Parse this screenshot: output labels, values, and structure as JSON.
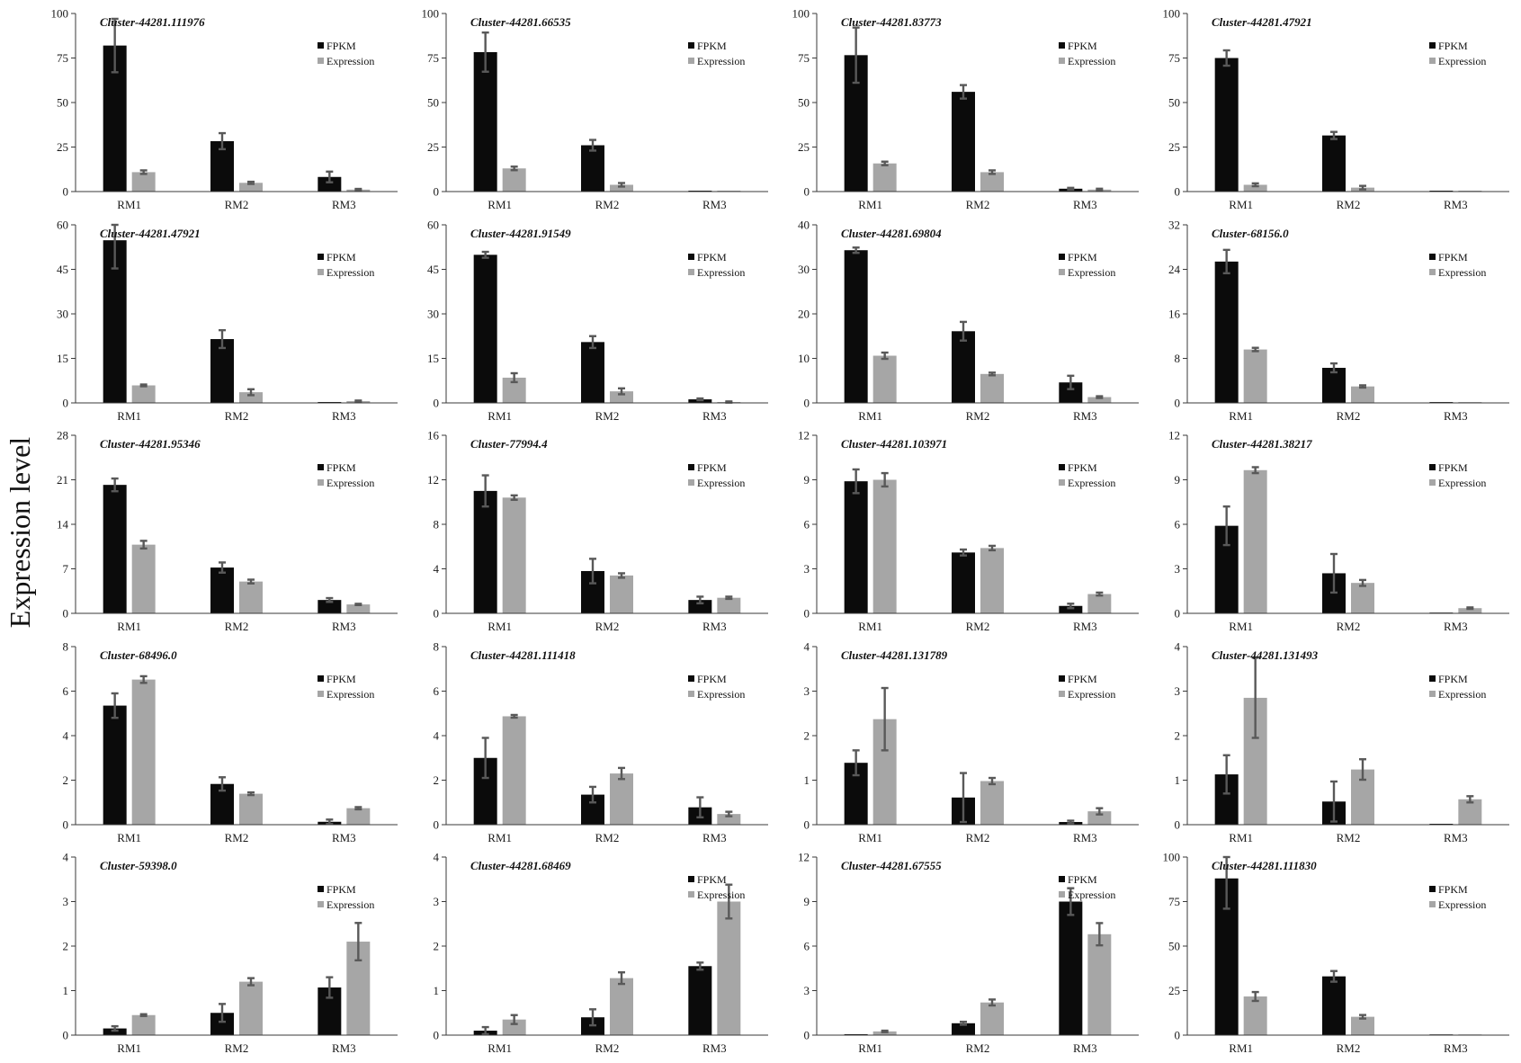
{
  "y_axis_label": "Expression level",
  "series_colors": [
    "#0b0b0b",
    "#a6a6a6"
  ],
  "error_bar_color": "#595959",
  "chart_data": [
    {
      "type": "bar",
      "title": "Cluster-44281.111976",
      "categories": [
        "RM1",
        "RM2",
        "RM3"
      ],
      "ylim": [
        0,
        100
      ],
      "yticks": [
        0,
        25,
        50,
        75,
        100
      ],
      "legend": "top-right",
      "series": [
        {
          "name": "FPKM",
          "values": [
            82,
            28.3,
            8.2
          ],
          "errors": [
            15,
            4.5,
            3
          ]
        },
        {
          "name": "Expression",
          "values": [
            10.9,
            4.9,
            1.1
          ],
          "errors": [
            1,
            0.6,
            0.4
          ]
        }
      ]
    },
    {
      "type": "bar",
      "title": "Cluster-44281.66535",
      "categories": [
        "RM1",
        "RM2",
        "RM3"
      ],
      "ylim": [
        0,
        100
      ],
      "yticks": [
        0,
        25,
        50,
        75,
        100
      ],
      "legend": "top-right",
      "series": [
        {
          "name": "FPKM",
          "values": [
            78.3,
            26,
            0.5
          ],
          "errors": [
            11,
            3,
            0
          ]
        },
        {
          "name": "Expression",
          "values": [
            13,
            3.8,
            0.5
          ],
          "errors": [
            1,
            1,
            0
          ]
        }
      ]
    },
    {
      "type": "bar",
      "title": "Cluster-44281.83773",
      "categories": [
        "RM1",
        "RM2",
        "RM3"
      ],
      "ylim": [
        0,
        100
      ],
      "yticks": [
        0,
        25,
        50,
        75,
        100
      ],
      "legend": "top-right",
      "series": [
        {
          "name": "FPKM",
          "values": [
            76.6,
            56,
            1.6
          ],
          "errors": [
            15.5,
            3.8,
            0.5
          ]
        },
        {
          "name": "Expression",
          "values": [
            15.8,
            10.9,
            1.1
          ],
          "errors": [
            1,
            1,
            0.5
          ]
        }
      ]
    },
    {
      "type": "bar",
      "title": "Cluster-44281.47921",
      "categories": [
        "RM1",
        "RM2",
        "RM3"
      ],
      "ylim": [
        0,
        100
      ],
      "yticks": [
        0,
        25,
        50,
        75,
        100
      ],
      "legend": "top-right",
      "series": [
        {
          "name": "FPKM",
          "values": [
            75,
            31.5,
            0.5
          ],
          "errors": [
            4.3,
            2,
            0
          ]
        },
        {
          "name": "Expression",
          "values": [
            3.8,
            2.2,
            0.5
          ],
          "errors": [
            0.8,
            1,
            0
          ]
        }
      ]
    },
    {
      "type": "bar",
      "title": "Cluster-44281.47921",
      "categories": [
        "RM1",
        "RM2",
        "RM3"
      ],
      "ylim": [
        0,
        60
      ],
      "yticks": [
        0,
        15,
        30,
        45,
        60
      ],
      "legend": "top-right",
      "series": [
        {
          "name": "FPKM",
          "values": [
            54.8,
            21.5,
            0.3
          ],
          "errors": [
            9.5,
            3,
            0
          ]
        },
        {
          "name": "Expression",
          "values": [
            5.9,
            3.6,
            0.6
          ],
          "errors": [
            0.3,
            1,
            0.2
          ]
        }
      ]
    },
    {
      "type": "bar",
      "title": "Cluster-44281.91549",
      "categories": [
        "RM1",
        "RM2",
        "RM3"
      ],
      "ylim": [
        0,
        60
      ],
      "yticks": [
        0,
        15,
        30,
        45,
        60
      ],
      "legend": "top-right",
      "series": [
        {
          "name": "FPKM",
          "values": [
            49.9,
            20.5,
            1.2
          ],
          "errors": [
            1,
            2,
            0.3
          ]
        },
        {
          "name": "Expression",
          "values": [
            8.5,
            3.9,
            0.3
          ],
          "errors": [
            1.5,
            1,
            0.2
          ]
        }
      ]
    },
    {
      "type": "bar",
      "title": "Cluster-44281.69804",
      "categories": [
        "RM1",
        "RM2",
        "RM3"
      ],
      "ylim": [
        0,
        40
      ],
      "yticks": [
        0,
        10,
        20,
        30,
        40
      ],
      "legend": "top-right",
      "series": [
        {
          "name": "FPKM",
          "values": [
            34.3,
            16.1,
            4.6
          ],
          "errors": [
            0.6,
            2.1,
            1.5
          ]
        },
        {
          "name": "Expression",
          "values": [
            10.6,
            6.5,
            1.3
          ],
          "errors": [
            0.7,
            0.3,
            0.2
          ]
        }
      ]
    },
    {
      "type": "bar",
      "title": "Cluster-68156.0",
      "categories": [
        "RM1",
        "RM2",
        "RM3"
      ],
      "ylim": [
        0,
        32
      ],
      "yticks": [
        0,
        8,
        16,
        24,
        32
      ],
      "legend": "top-right",
      "series": [
        {
          "name": "FPKM",
          "values": [
            25.4,
            6.3,
            0.15
          ],
          "errors": [
            2.1,
            0.8,
            0
          ]
        },
        {
          "name": "Expression",
          "values": [
            9.6,
            2.96,
            0.15
          ],
          "errors": [
            0.3,
            0.2,
            0
          ]
        }
      ]
    },
    {
      "type": "bar",
      "title": "Cluster-44281.95346",
      "categories": [
        "RM1",
        "RM2",
        "RM3"
      ],
      "ylim": [
        0,
        28
      ],
      "yticks": [
        0,
        7,
        14,
        21,
        28
      ],
      "legend": "top-right",
      "series": [
        {
          "name": "FPKM",
          "values": [
            20.2,
            7.2,
            2.1
          ],
          "errors": [
            1,
            0.8,
            0.3
          ]
        },
        {
          "name": "Expression",
          "values": [
            10.8,
            5,
            1.4
          ],
          "errors": [
            0.6,
            0.3,
            0.1
          ]
        }
      ]
    },
    {
      "type": "bar",
      "title": "Cluster-77994.4",
      "categories": [
        "RM1",
        "RM2",
        "RM3"
      ],
      "ylim": [
        0,
        16
      ],
      "yticks": [
        0,
        4,
        8,
        12,
        16
      ],
      "legend": "top-right",
      "series": [
        {
          "name": "FPKM",
          "values": [
            11,
            3.8,
            1.2
          ],
          "errors": [
            1.4,
            1.1,
            0.3
          ]
        },
        {
          "name": "Expression",
          "values": [
            10.4,
            3.4,
            1.4
          ],
          "errors": [
            0.2,
            0.2,
            0.1
          ]
        }
      ]
    },
    {
      "type": "bar",
      "title": "Cluster-44281.103971",
      "categories": [
        "RM1",
        "RM2",
        "RM3"
      ],
      "ylim": [
        0,
        12
      ],
      "yticks": [
        0,
        3,
        6,
        9,
        12
      ],
      "legend": "top-right",
      "series": [
        {
          "name": "FPKM",
          "values": [
            8.9,
            4.1,
            0.5
          ],
          "errors": [
            0.8,
            0.2,
            0.15
          ]
        },
        {
          "name": "Expression",
          "values": [
            9,
            4.4,
            1.3
          ],
          "errors": [
            0.45,
            0.15,
            0.1
          ]
        }
      ]
    },
    {
      "type": "bar",
      "title": "Cluster-44281.38217",
      "categories": [
        "RM1",
        "RM2",
        "RM3"
      ],
      "ylim": [
        0,
        12
      ],
      "yticks": [
        0,
        3,
        6,
        9,
        12
      ],
      "legend": "top-right",
      "series": [
        {
          "name": "FPKM",
          "values": [
            5.9,
            2.7,
            0.05
          ],
          "errors": [
            1.3,
            1.3,
            0
          ]
        },
        {
          "name": "Expression",
          "values": [
            9.65,
            2.05,
            0.35
          ],
          "errors": [
            0.2,
            0.2,
            0.05
          ]
        }
      ]
    },
    {
      "type": "bar",
      "title": "Cluster-68496.0",
      "categories": [
        "RM1",
        "RM2",
        "RM3"
      ],
      "ylim": [
        0,
        8
      ],
      "yticks": [
        0,
        2,
        4,
        6,
        8
      ],
      "legend": "top-right",
      "series": [
        {
          "name": "FPKM",
          "values": [
            5.35,
            1.83,
            0.13
          ],
          "errors": [
            0.55,
            0.3,
            0.1
          ]
        },
        {
          "name": "Expression",
          "values": [
            6.52,
            1.39,
            0.74
          ],
          "errors": [
            0.15,
            0.06,
            0.05
          ]
        }
      ]
    },
    {
      "type": "bar",
      "title": "Cluster-44281.111418",
      "categories": [
        "RM1",
        "RM2",
        "RM3"
      ],
      "ylim": [
        0,
        8
      ],
      "yticks": [
        0,
        2,
        4,
        6,
        8
      ],
      "legend": "top-right",
      "series": [
        {
          "name": "FPKM",
          "values": [
            3,
            1.35,
            0.78
          ],
          "errors": [
            0.9,
            0.35,
            0.45
          ]
        },
        {
          "name": "Expression",
          "values": [
            4.87,
            2.3,
            0.48
          ],
          "errors": [
            0.06,
            0.25,
            0.1
          ]
        }
      ]
    },
    {
      "type": "bar",
      "title": "Cluster-44281.131789",
      "categories": [
        "RM1",
        "RM2",
        "RM3"
      ],
      "ylim": [
        0,
        4
      ],
      "yticks": [
        0,
        1,
        2,
        3,
        4
      ],
      "legend": "top-right",
      "series": [
        {
          "name": "FPKM",
          "values": [
            1.39,
            0.61,
            0.06
          ],
          "errors": [
            0.28,
            0.55,
            0.03
          ]
        },
        {
          "name": "Expression",
          "values": [
            2.37,
            0.98,
            0.3
          ],
          "errors": [
            0.7,
            0.07,
            0.07
          ]
        }
      ]
    },
    {
      "type": "bar",
      "title": "Cluster-44281.131493",
      "categories": [
        "RM1",
        "RM2",
        "RM3"
      ],
      "ylim": [
        0,
        4
      ],
      "yticks": [
        0,
        1,
        2,
        3,
        4
      ],
      "legend": "top-right",
      "series": [
        {
          "name": "FPKM",
          "values": [
            1.13,
            0.52,
            0.02
          ],
          "errors": [
            0.43,
            0.45,
            0
          ]
        },
        {
          "name": "Expression",
          "values": [
            2.85,
            1.24,
            0.57
          ],
          "errors": [
            0.9,
            0.23,
            0.07
          ]
        }
      ]
    },
    {
      "type": "bar",
      "title": "Cluster-59398.0",
      "categories": [
        "RM1",
        "RM2",
        "RM3"
      ],
      "ylim": [
        0,
        4
      ],
      "yticks": [
        0,
        1,
        2,
        3,
        4
      ],
      "legend": "top-right",
      "series": [
        {
          "name": "FPKM",
          "values": [
            0.15,
            0.5,
            1.07
          ],
          "errors": [
            0.05,
            0.2,
            0.23
          ]
        },
        {
          "name": "Expression",
          "values": [
            0.45,
            1.2,
            2.1
          ],
          "errors": [
            0.02,
            0.08,
            0.42
          ]
        }
      ]
    },
    {
      "type": "bar",
      "title": "Cluster-44281.68469",
      "categories": [
        "RM1",
        "RM2",
        "RM3"
      ],
      "ylim": [
        0,
        4
      ],
      "yticks": [
        0,
        1,
        2,
        3,
        4
      ],
      "legend": "top-right",
      "series": [
        {
          "name": "FPKM",
          "values": [
            0.1,
            0.4,
            1.55
          ],
          "errors": [
            0.08,
            0.18,
            0.08
          ]
        },
        {
          "name": "Expression",
          "values": [
            0.35,
            1.28,
            3.0
          ],
          "errors": [
            0.1,
            0.13,
            0.38
          ]
        }
      ]
    },
    {
      "type": "bar",
      "title": "Cluster-44281.67555",
      "categories": [
        "RM1",
        "RM2",
        "RM3"
      ],
      "ylim": [
        0,
        12
      ],
      "yticks": [
        0,
        3,
        6,
        9,
        12
      ],
      "legend": "top-right",
      "series": [
        {
          "name": "FPKM",
          "values": [
            0.06,
            0.8,
            9.0
          ],
          "errors": [
            0,
            0.1,
            0.9
          ]
        },
        {
          "name": "Expression",
          "values": [
            0.25,
            2.2,
            6.8
          ],
          "errors": [
            0.05,
            0.2,
            0.75
          ]
        }
      ]
    },
    {
      "type": "bar",
      "title": "Cluster-44281.111830",
      "categories": [
        "RM1",
        "RM2",
        "RM3"
      ],
      "ylim": [
        0,
        100
      ],
      "yticks": [
        0,
        25,
        50,
        75,
        100
      ],
      "legend": "top-right",
      "series": [
        {
          "name": "FPKM",
          "values": [
            88,
            33,
            0.4
          ],
          "errors": [
            17,
            3,
            0
          ]
        },
        {
          "name": "Expression",
          "values": [
            21.7,
            10.3,
            0.4
          ],
          "errors": [
            2.5,
            1,
            0
          ]
        }
      ]
    }
  ]
}
